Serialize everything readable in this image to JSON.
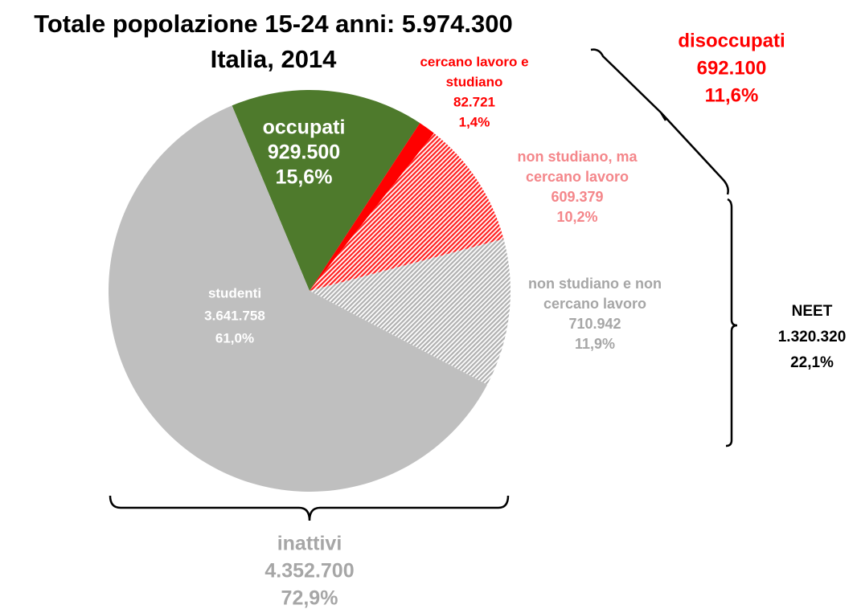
{
  "chart_data": {
    "type": "pie",
    "title": "Totale popolazione 15-24 anni: 5.974.300",
    "subtitle": "Italia, 2014",
    "labels": [
      [
        "occupati"
      ],
      [
        "cercano lavoro e",
        "studiano"
      ],
      [
        "non studiano, ma",
        "cercano lavoro"
      ],
      [
        "non studiano e non",
        "cercano lavoro"
      ],
      [
        "studenti"
      ]
    ],
    "values": [
      929500,
      82721,
      609379,
      710942,
      3641758
    ],
    "value_labels": [
      "929.500",
      "82.721",
      "609.379",
      "710.942",
      "3.641.758"
    ],
    "share_labels": [
      "15,6%",
      "1,4%",
      "10,2%",
      "11,9%",
      "61,0%"
    ],
    "colors": [
      "#4e7a2c",
      "#ff0000",
      "#ff2020",
      "#b0b0b0",
      "#bfbfbf"
    ],
    "hatched": [
      false,
      false,
      true,
      true,
      false
    ],
    "label_colors": [
      "#ffffff",
      "#ff0000",
      "#f4868a",
      "#a6a6a6",
      "#ffffff"
    ],
    "groups": [
      {
        "name": "disoccupati",
        "value_label": "692.100",
        "share_label": "11,6%",
        "color": "#ff0000"
      },
      {
        "name": "NEET",
        "value_label": "1.320.320",
        "share_label": "22,1%",
        "color": "#000000"
      },
      {
        "name": "inattivi",
        "value_label": "4.352.700",
        "share_label": "72,9%",
        "color": "#a6a6a6"
      }
    ]
  }
}
